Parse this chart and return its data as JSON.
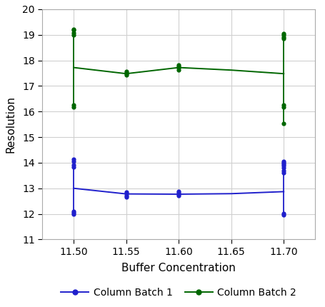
{
  "title": "",
  "xlabel": "Buffer Concentration",
  "ylabel": "Resolution",
  "xlim": [
    11.47,
    11.73
  ],
  "ylim": [
    11,
    20
  ],
  "xticks": [
    11.5,
    11.55,
    11.6,
    11.65,
    11.7
  ],
  "yticks": [
    11,
    12,
    13,
    14,
    15,
    16,
    17,
    18,
    19,
    20
  ],
  "background_color": "#ffffff",
  "grid_color": "#d0d0d0",
  "batch1_color": "#2020cc",
  "batch2_color": "#006600",
  "batch1_fit_x": [
    11.5,
    11.55,
    11.6,
    11.65,
    11.7
  ],
  "batch1_fit_y": [
    13.0,
    12.78,
    12.77,
    12.79,
    12.87
  ],
  "batch1_scatter": {
    "11.50": [
      12.0,
      12.05,
      12.1,
      13.82,
      13.9,
      14.05,
      14.15
    ],
    "11.55": [
      12.67,
      12.72,
      12.8,
      12.85
    ],
    "11.60": [
      12.7,
      12.76,
      12.82,
      12.88
    ],
    "11.70": [
      11.97,
      12.02,
      13.6,
      13.7,
      13.8,
      13.88,
      13.95,
      14.0,
      14.05
    ]
  },
  "batch2_fit_x": [
    11.5,
    11.55,
    11.6,
    11.65,
    11.7
  ],
  "batch2_fit_y": [
    17.72,
    17.48,
    17.72,
    17.62,
    17.48
  ],
  "batch2_scatter": {
    "11.50": [
      16.18,
      16.25,
      19.0,
      19.08,
      19.18,
      19.22
    ],
    "11.55": [
      17.42,
      17.48,
      17.52,
      17.56
    ],
    "11.60": [
      17.62,
      17.7,
      17.76,
      17.82
    ],
    "11.70": [
      15.52,
      16.18,
      16.25,
      18.85,
      18.92,
      19.0,
      19.05
    ]
  },
  "legend_labels": [
    "Column Batch 1",
    "Column Batch 2"
  ]
}
